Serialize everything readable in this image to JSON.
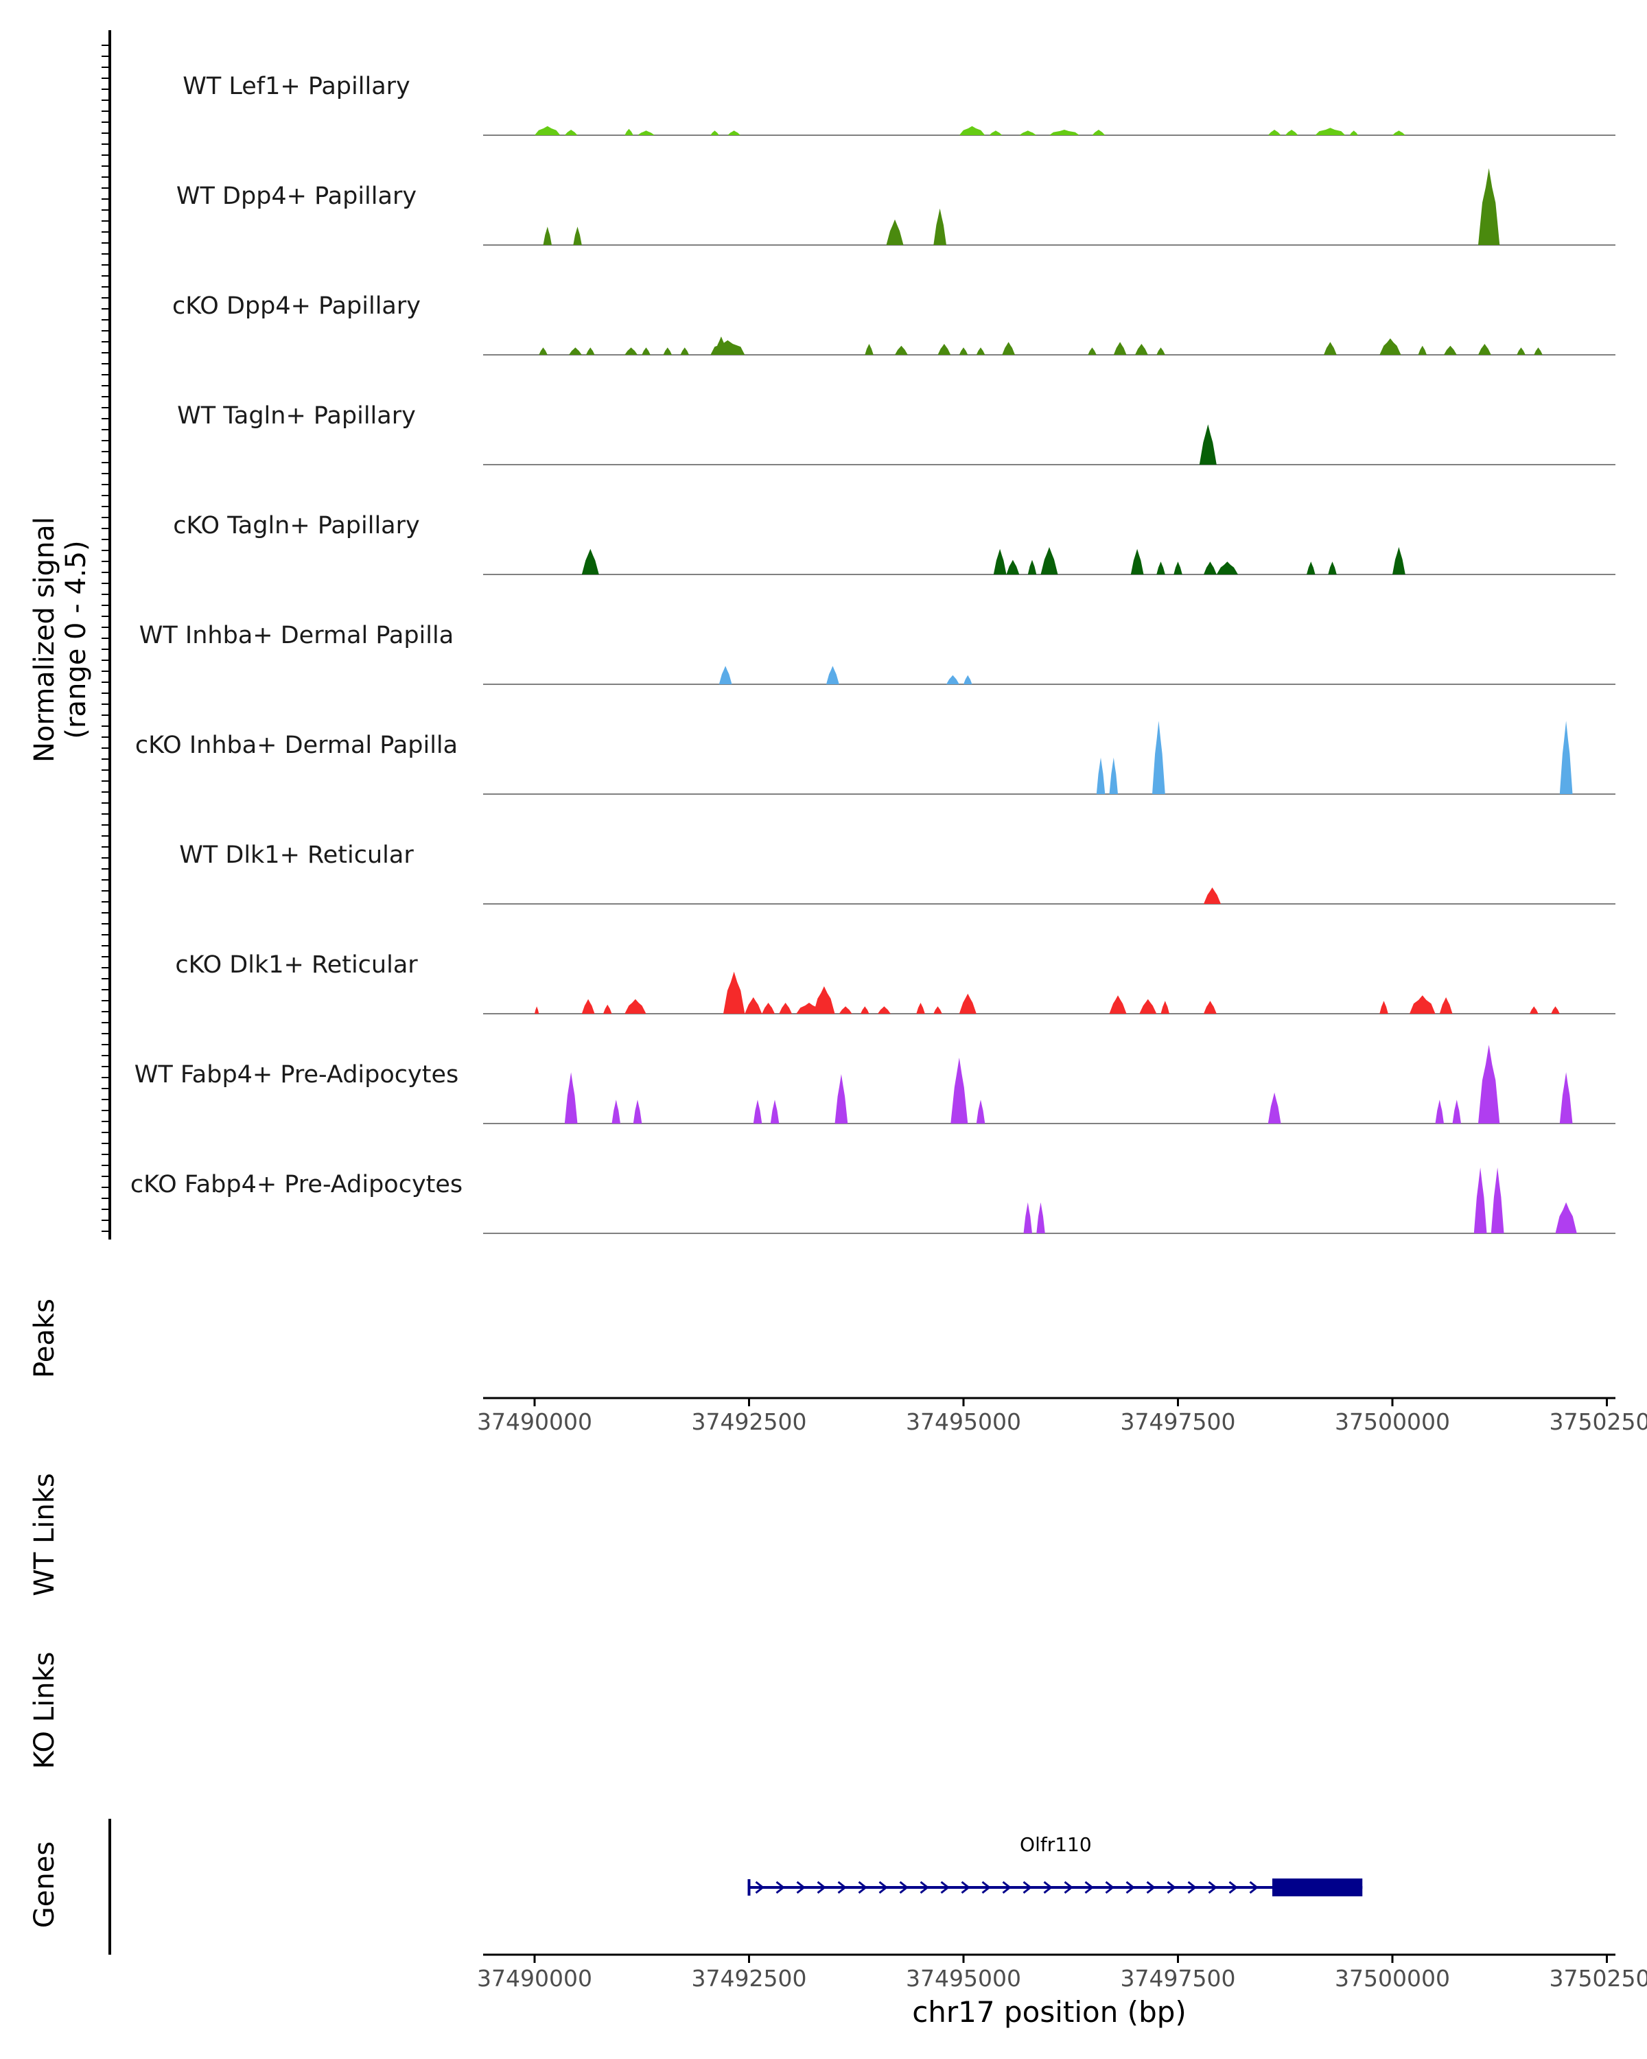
{
  "chart_data": {
    "type": "area",
    "title": "",
    "signal_ylabel": [
      "Normalized signal",
      "(range 0 - 4.5)"
    ],
    "ylim": [
      0,
      4.5
    ],
    "xlim": [
      37489400,
      37502600
    ],
    "xlabel": "chr17 position (bp)",
    "x_ticks": [
      37490000,
      37492500,
      37495000,
      37497500,
      37500000,
      37502500
    ],
    "x_tick_labels": [
      "37490000",
      "37492500",
      "37495000",
      "37497500",
      "37500000",
      "37502500"
    ],
    "panel_labels": {
      "peaks": "Peaks",
      "wt_links": "WT Links",
      "ko_links": "KO Links",
      "genes": "Genes"
    },
    "tracks": [
      {
        "name": "WT Lef1+ Papillary",
        "color": "#66cc14",
        "peaks": [
          [
            37490000,
            37490300,
            0.5
          ],
          [
            37490350,
            37490500,
            0.3
          ],
          [
            37491050,
            37491150,
            0.35
          ],
          [
            37491200,
            37491400,
            0.25
          ],
          [
            37492050,
            37492150,
            0.25
          ],
          [
            37492250,
            37492400,
            0.25
          ],
          [
            37494950,
            37495250,
            0.5
          ],
          [
            37495300,
            37495450,
            0.25
          ],
          [
            37495650,
            37495850,
            0.25
          ],
          [
            37496000,
            37496350,
            0.3
          ],
          [
            37496500,
            37496650,
            0.3
          ],
          [
            37498550,
            37498700,
            0.3
          ],
          [
            37498750,
            37498900,
            0.3
          ],
          [
            37499100,
            37499450,
            0.4
          ],
          [
            37499500,
            37499600,
            0.25
          ],
          [
            37500000,
            37500150,
            0.25
          ]
        ]
      },
      {
        "name": "WT Dpp4+ Papillary",
        "color": "#4a8a0e",
        "peaks": [
          [
            37490100,
            37490200,
            1.0
          ],
          [
            37490450,
            37490550,
            1.0
          ],
          [
            37494100,
            37494300,
            1.4
          ],
          [
            37494650,
            37494800,
            2.0
          ],
          [
            37501000,
            37501250,
            4.2
          ]
        ]
      },
      {
        "name": "cKO Dpp4+ Papillary",
        "color": "#4a8a0e",
        "peaks": [
          [
            37490050,
            37490150,
            0.4
          ],
          [
            37490400,
            37490550,
            0.4
          ],
          [
            37490600,
            37490700,
            0.4
          ],
          [
            37491050,
            37491200,
            0.4
          ],
          [
            37491250,
            37491350,
            0.4
          ],
          [
            37491500,
            37491600,
            0.4
          ],
          [
            37491700,
            37491800,
            0.4
          ],
          [
            37492100,
            37492250,
            1.0
          ],
          [
            37492050,
            37492450,
            0.8
          ],
          [
            37493850,
            37493950,
            0.6
          ],
          [
            37494200,
            37494350,
            0.5
          ],
          [
            37494700,
            37494850,
            0.6
          ],
          [
            37494950,
            37495050,
            0.4
          ],
          [
            37495150,
            37495250,
            0.4
          ],
          [
            37495450,
            37495600,
            0.7
          ],
          [
            37496450,
            37496550,
            0.4
          ],
          [
            37496750,
            37496900,
            0.7
          ],
          [
            37497000,
            37497150,
            0.6
          ],
          [
            37497250,
            37497350,
            0.4
          ],
          [
            37499200,
            37499350,
            0.7
          ],
          [
            37499850,
            37500100,
            0.9
          ],
          [
            37500300,
            37500400,
            0.5
          ],
          [
            37500600,
            37500750,
            0.5
          ],
          [
            37501000,
            37501150,
            0.6
          ],
          [
            37501450,
            37501550,
            0.4
          ],
          [
            37501650,
            37501750,
            0.4
          ]
        ]
      },
      {
        "name": "WT Tagln+ Papillary",
        "color": "#075f07",
        "peaks": [
          [
            37497750,
            37497950,
            2.2
          ]
        ]
      },
      {
        "name": "cKO Tagln+ Papillary",
        "color": "#075f07",
        "peaks": [
          [
            37490550,
            37490750,
            1.4
          ],
          [
            37495350,
            37495500,
            1.4
          ],
          [
            37495500,
            37495650,
            0.8
          ],
          [
            37495750,
            37495850,
            0.8
          ],
          [
            37495900,
            37496100,
            1.5
          ],
          [
            37496950,
            37497100,
            1.4
          ],
          [
            37497250,
            37497350,
            0.7
          ],
          [
            37497450,
            37497550,
            0.7
          ],
          [
            37497800,
            37497950,
            0.7
          ],
          [
            37497950,
            37498200,
            0.7
          ],
          [
            37499000,
            37499100,
            0.7
          ],
          [
            37499250,
            37499350,
            0.7
          ],
          [
            37500000,
            37500150,
            1.5
          ]
        ]
      },
      {
        "name": "WT Inhba+ Dermal Papilla",
        "color": "#5aabe8",
        "peaks": [
          [
            37492150,
            37492300,
            1.0
          ],
          [
            37493400,
            37493550,
            1.0
          ],
          [
            37494800,
            37494950,
            0.5
          ],
          [
            37495000,
            37495100,
            0.5
          ]
        ]
      },
      {
        "name": "cKO Inhba+ Dermal Papilla",
        "color": "#5aabe8",
        "peaks": [
          [
            37496550,
            37496650,
            2.0
          ],
          [
            37496700,
            37496800,
            2.0
          ],
          [
            37497200,
            37497350,
            4.0
          ],
          [
            37501950,
            37502100,
            4.0
          ]
        ]
      },
      {
        "name": "WT Dlk1+ Reticular",
        "color": "#f52a2a",
        "peaks": [
          [
            37497800,
            37498000,
            0.9
          ]
        ]
      },
      {
        "name": "cKO Dlk1+ Reticular",
        "color": "#f52a2a",
        "peaks": [
          [
            37490000,
            37490050,
            0.4
          ],
          [
            37490550,
            37490700,
            0.8
          ],
          [
            37490800,
            37490900,
            0.5
          ],
          [
            37491050,
            37491300,
            0.8
          ],
          [
            37492200,
            37492450,
            2.3
          ],
          [
            37492450,
            37492650,
            0.9
          ],
          [
            37492650,
            37492800,
            0.6
          ],
          [
            37492850,
            37493000,
            0.6
          ],
          [
            37493050,
            37493350,
            0.6
          ],
          [
            37493250,
            37493500,
            1.5
          ],
          [
            37493550,
            37493700,
            0.4
          ],
          [
            37493800,
            37493900,
            0.4
          ],
          [
            37494000,
            37494150,
            0.4
          ],
          [
            37494450,
            37494550,
            0.6
          ],
          [
            37494650,
            37494750,
            0.4
          ],
          [
            37494950,
            37495150,
            1.1
          ],
          [
            37496700,
            37496900,
            1.0
          ],
          [
            37497050,
            37497250,
            0.8
          ],
          [
            37497300,
            37497400,
            0.7
          ],
          [
            37497800,
            37497950,
            0.7
          ],
          [
            37499850,
            37499950,
            0.7
          ],
          [
            37500200,
            37500500,
            1.0
          ],
          [
            37500550,
            37500700,
            0.9
          ],
          [
            37501600,
            37501700,
            0.4
          ],
          [
            37501850,
            37501950,
            0.4
          ]
        ]
      },
      {
        "name": "WT Fabp4+ Pre-Adipocytes",
        "color": "#b03ef0",
        "peaks": [
          [
            37490350,
            37490500,
            2.8
          ],
          [
            37490900,
            37491000,
            1.3
          ],
          [
            37491150,
            37491250,
            1.3
          ],
          [
            37492550,
            37492650,
            1.3
          ],
          [
            37492750,
            37492850,
            1.3
          ],
          [
            37493500,
            37493650,
            2.7
          ],
          [
            37494850,
            37495050,
            3.6
          ],
          [
            37495150,
            37495250,
            1.3
          ],
          [
            37498550,
            37498700,
            1.7
          ],
          [
            37500500,
            37500600,
            1.3
          ],
          [
            37500700,
            37500800,
            1.3
          ],
          [
            37501000,
            37501250,
            4.3
          ],
          [
            37501950,
            37502100,
            2.8
          ]
        ]
      },
      {
        "name": "cKO Fabp4+ Pre-Adipocytes",
        "color": "#b03ef0",
        "peaks": [
          [
            37495700,
            37495800,
            1.7
          ],
          [
            37495850,
            37495950,
            1.7
          ],
          [
            37500950,
            37501100,
            3.6
          ],
          [
            37501150,
            37501300,
            3.6
          ],
          [
            37501900,
            37502150,
            1.7
          ]
        ]
      }
    ],
    "gene": {
      "name": "Olfr110",
      "start": 37492500,
      "end": 37499650,
      "thick_start": 37498600,
      "color": "#00008b"
    }
  }
}
